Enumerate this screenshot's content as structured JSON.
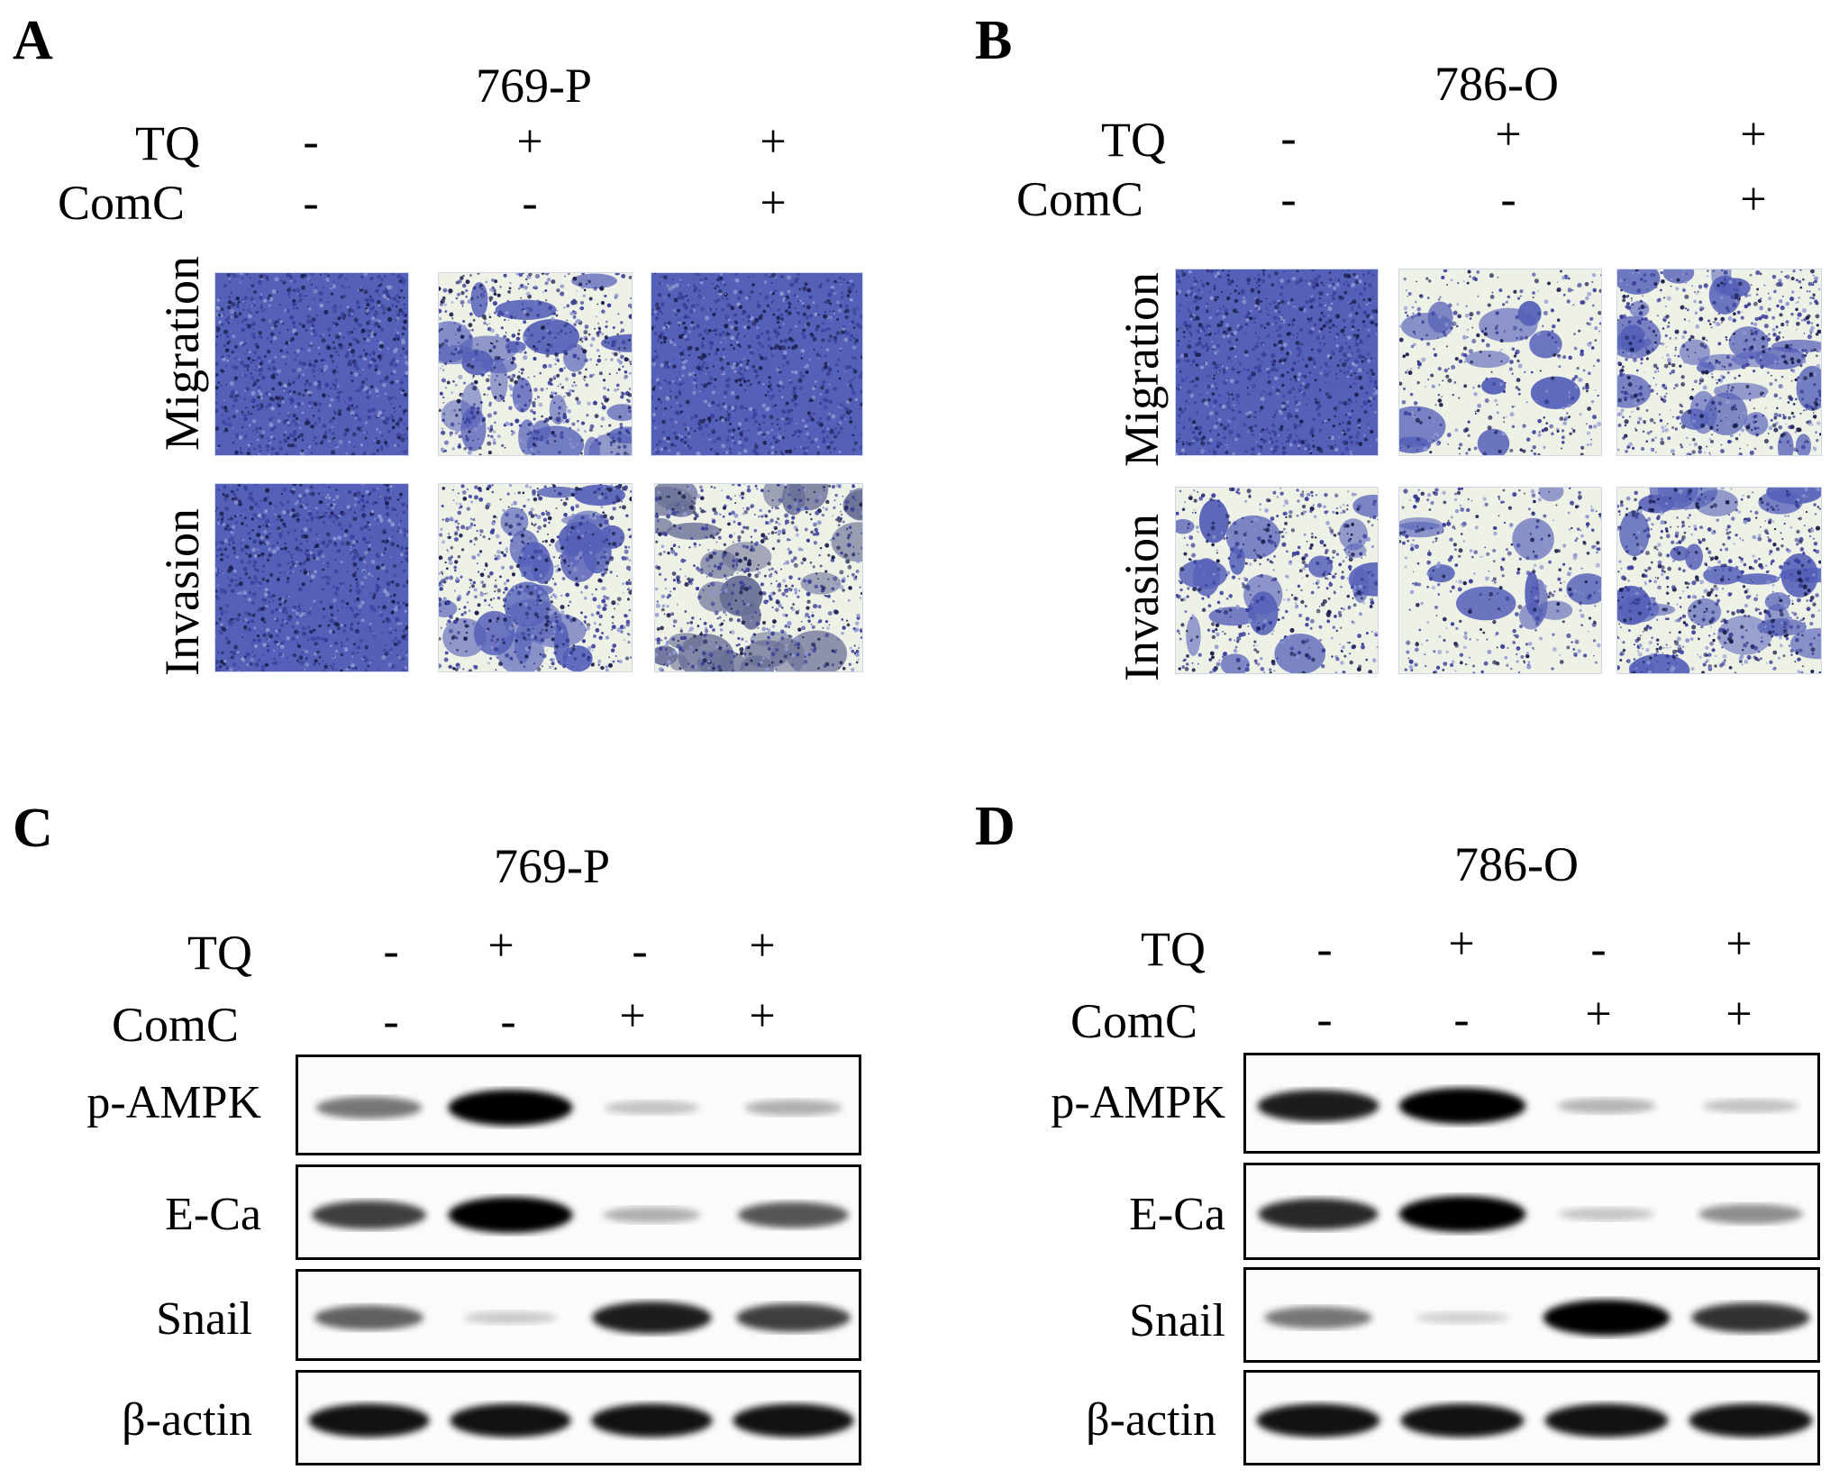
{
  "panels": {
    "A": {
      "letter": "A",
      "cell_line": "769-P",
      "tq_label": "TQ",
      "comc_label": "ComC",
      "tq": [
        "-",
        "+",
        "+"
      ],
      "comc": [
        "-",
        "-",
        "+"
      ],
      "row_labels": [
        "Migration",
        "Invasion"
      ]
    },
    "B": {
      "letter": "B",
      "cell_line": "786-O",
      "tq_label": "TQ",
      "comc_label": "ComC",
      "tq": [
        "-",
        "+",
        "+"
      ],
      "comc": [
        "-",
        "-",
        "+"
      ],
      "row_labels": [
        "Migration",
        "Invasion"
      ]
    },
    "C": {
      "letter": "C",
      "cell_line": "769-P",
      "tq_label": "TQ",
      "comc_label": "ComC",
      "tq": [
        "-",
        "+",
        "-",
        "+"
      ],
      "comc": [
        "-",
        "-",
        "+",
        "+"
      ],
      "blots": [
        {
          "label": "p-AMPK",
          "intensity": [
            0.45,
            1.0,
            0.12,
            0.2
          ]
        },
        {
          "label": "E-Ca",
          "intensity": [
            0.7,
            1.0,
            0.2,
            0.6
          ]
        },
        {
          "label": "Snail",
          "intensity": [
            0.55,
            0.08,
            0.85,
            0.7
          ]
        },
        {
          "label": "β-actin",
          "intensity": [
            0.9,
            0.9,
            0.9,
            0.9
          ]
        }
      ]
    },
    "D": {
      "letter": "D",
      "cell_line": "786-O",
      "tq_label": "TQ",
      "comc_label": "ComC",
      "tq": [
        "-",
        "+",
        "-",
        "+"
      ],
      "comc": [
        "-",
        "-",
        "+",
        "+"
      ],
      "blots": [
        {
          "label": "p-AMPK",
          "intensity": [
            0.85,
            1.0,
            0.18,
            0.12
          ]
        },
        {
          "label": "E-Ca",
          "intensity": [
            0.8,
            1.0,
            0.1,
            0.35
          ]
        },
        {
          "label": "Snail",
          "intensity": [
            0.45,
            0.05,
            1.0,
            0.75
          ]
        },
        {
          "label": "β-actin",
          "intensity": [
            0.9,
            0.9,
            0.9,
            0.9
          ]
        }
      ]
    }
  },
  "colors": {
    "stain_dark": "#3a3f9a",
    "stain_mid": "#5560b8",
    "stain_light": "#8f98d2",
    "background_pale": "#eef1e6",
    "band": "#000000"
  }
}
